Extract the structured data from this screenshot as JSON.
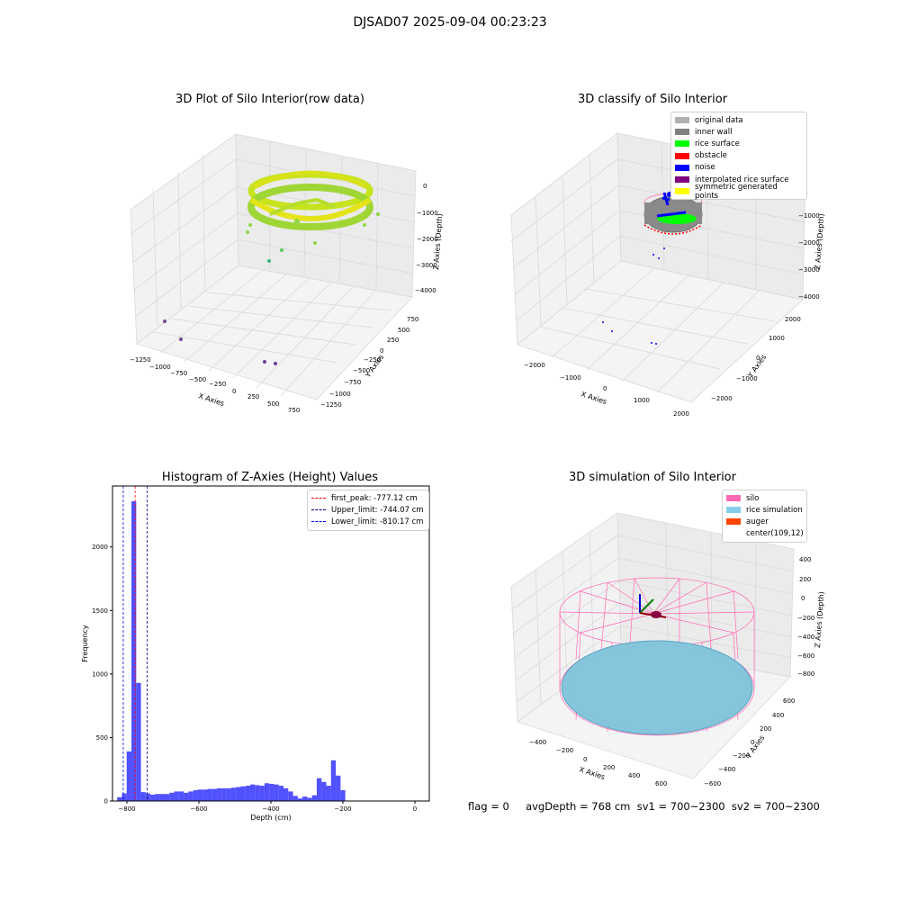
{
  "suptitle": "DJSAD07 2025-09-04 00:23:23",
  "footer": "flag = 0     avgDepth = 768 cm  sv1 = 700~2300  sv2 = 700~2300",
  "chart_data": [
    {
      "type": "scatter",
      "title": "3D Plot of Silo Interior(row data)",
      "xlabel": "X Axies",
      "ylabel": "Y Axies",
      "zlabel": "Z Axies (Depth)",
      "x_ticks": [
        "−1250",
        "−1000",
        "−750",
        "−500",
        "−250",
        "0",
        "250",
        "500",
        "750"
      ],
      "y_ticks": [
        "750",
        "500",
        "250",
        "0",
        "−250",
        "−500",
        "−750",
        "−1000",
        "−1250"
      ],
      "z_ticks": [
        "0",
        "−1000",
        "−2000",
        "−3000",
        "−4000"
      ],
      "colormap": "viridis",
      "description_points": "ring of points at depth about -700 cm, a few outliers near -2500 to -4500"
    },
    {
      "type": "scatter",
      "title": "3D classify of Silo Interior",
      "xlabel": "X Axies",
      "ylabel": "Y Axies",
      "zlabel": "Z Axies (Depth)",
      "x_ticks": [
        "−2000",
        "−1000",
        "0",
        "1000",
        "2000"
      ],
      "y_ticks": [
        "2000",
        "1000",
        "0",
        "−1000",
        "−2000"
      ],
      "z_ticks": [
        "0",
        "−1000",
        "−2000",
        "−3000",
        "−4000"
      ],
      "legend": [
        {
          "label": "original data",
          "color": "#b0b0b0"
        },
        {
          "label": "inner wall",
          "color": "#808080"
        },
        {
          "label": "rice surface",
          "color": "#00ff00"
        },
        {
          "label": "obstacle",
          "color": "#ff0000"
        },
        {
          "label": "noise",
          "color": "#0000ff"
        },
        {
          "label": "interpolated rice surface",
          "color": "#800080"
        },
        {
          "label": "symmetric generated points",
          "color": "#ffff00"
        }
      ]
    },
    {
      "type": "bar",
      "title": "Histogram of Z-Axies (Height) Values",
      "xlabel": "Depth (cm)",
      "ylabel": "Frequency",
      "xlim": [
        -840,
        40
      ],
      "ylim": [
        0,
        2480
      ],
      "x_ticks": [
        -800,
        -600,
        -400,
        -200,
        0
      ],
      "y_ticks": [
        0,
        500,
        1000,
        1500,
        2000
      ],
      "bin_start": -827,
      "bin_width": 13.2,
      "values": [
        30,
        60,
        390,
        2360,
        930,
        70,
        60,
        50,
        55,
        55,
        55,
        65,
        75,
        75,
        65,
        75,
        85,
        90,
        90,
        95,
        95,
        100,
        100,
        100,
        105,
        110,
        115,
        120,
        130,
        125,
        120,
        140,
        135,
        130,
        120,
        100,
        75,
        40,
        20,
        35,
        25,
        45,
        180,
        150,
        120,
        320,
        200,
        85
      ],
      "bar_color": "#3333ff",
      "lines": [
        {
          "label": "first_peak: -777.12 cm",
          "value": -777.12,
          "color": "#ff0000"
        },
        {
          "label": "Upper_limit: -744.07 cm",
          "value": -744.07,
          "color": "#000080"
        },
        {
          "label": "Lower_limit: -810.17 cm",
          "value": -810.17,
          "color": "#0000ff"
        }
      ]
    },
    {
      "type": "scatter",
      "title": "3D simulation of Silo Interior",
      "xlabel": "X Axies",
      "ylabel": "Y Axies",
      "zlabel": "Z Axies (Depth)",
      "x_ticks": [
        "−400",
        "−200",
        "0",
        "200",
        "400",
        "600"
      ],
      "y_ticks": [
        "600",
        "400",
        "200",
        "0",
        "−200",
        "−400",
        "−600"
      ],
      "z_ticks": [
        "400",
        "200",
        "0",
        "−200",
        "−400",
        "−600",
        "−800"
      ],
      "legend": [
        {
          "label": "silo",
          "color": "#ff69b4"
        },
        {
          "label": "rice simulation",
          "color": "#87ceeb"
        },
        {
          "label": "auger",
          "color": "#ff4500"
        },
        {
          "label": "center(109,12)",
          "color": ""
        }
      ]
    }
  ]
}
